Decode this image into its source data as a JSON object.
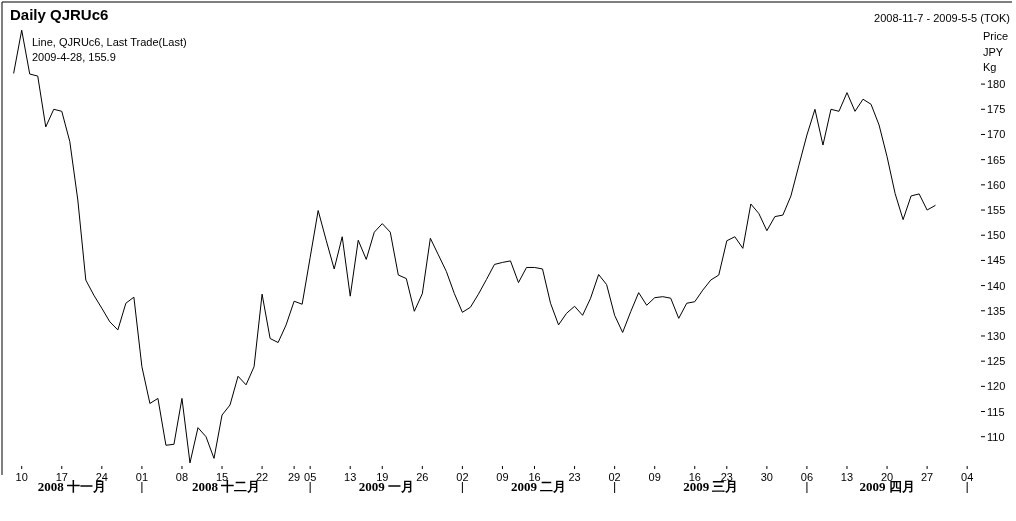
{
  "chart_data": {
    "type": "line",
    "title": "Daily QJRUc6",
    "subtitle": "2008-11-7 - 2009-5-5 (TOK)",
    "ylabel": "Price JPY Kg",
    "annotations": [
      "2009-4-28, 155.9",
      "2008 十一月",
      "2008 十二月",
      "2009 一月",
      "2009 二月",
      "2009 三月",
      "2009 四月"
    ],
    "categories": [
      null,
      "10",
      null,
      null,
      null,
      null,
      "17",
      null,
      null,
      null,
      null,
      "24",
      null,
      null,
      null,
      null,
      "01",
      null,
      null,
      null,
      null,
      "08",
      null,
      null,
      null,
      null,
      "15",
      null,
      null,
      null,
      null,
      "22",
      null,
      null,
      null,
      "29",
      null,
      "05",
      null,
      null,
      null,
      null,
      "13",
      null,
      null,
      null,
      "19",
      null,
      null,
      null,
      null,
      "26",
      null,
      null,
      null,
      null,
      "02",
      null,
      null,
      null,
      null,
      "09",
      null,
      null,
      null,
      "16",
      null,
      null,
      null,
      null,
      "23",
      null,
      null,
      null,
      null,
      "02",
      null,
      null,
      null,
      null,
      "09",
      null,
      null,
      null,
      null,
      "16",
      null,
      null,
      null,
      "23",
      null,
      null,
      null,
      null,
      "30",
      null,
      null,
      null,
      null,
      "06",
      null,
      null,
      null,
      null,
      "13",
      null,
      null,
      null,
      null,
      "20",
      null,
      null,
      null,
      null,
      "27",
      null,
      null,
      null,
      null,
      "04",
      null
    ],
    "series": [
      {
        "name": "Line, QJRUc6, Last Trade(Last)",
        "color": "#000000",
        "values": [
          182.2,
          190.7,
          182.0,
          181.6,
          171.5,
          175.0,
          174.6,
          168.6,
          157.0,
          141.1,
          138.1,
          135.5,
          132.8,
          131.2,
          136.5,
          137.7,
          123.9,
          116.6,
          117.6,
          108.3,
          108.5,
          117.6,
          104.8,
          111.8,
          110.0,
          105.7,
          114.3,
          116.3,
          122.0,
          120.3,
          123.9,
          138.3,
          129.5,
          128.7,
          132.2,
          136.9,
          136.3,
          145.6,
          154.9,
          149.0,
          143.3,
          149.7,
          137.9,
          149.0,
          145.2,
          150.6,
          152.3,
          150.6,
          142.1,
          141.4,
          134.9,
          138.4,
          149.4,
          146.1,
          142.8,
          138.4,
          134.7,
          135.7,
          138.3,
          141.2,
          144.2,
          144.6,
          144.9,
          140.6,
          143.6,
          143.6,
          143.3,
          136.5,
          132.2,
          134.5,
          135.9,
          134.1,
          137.5,
          142.2,
          140.2,
          134.1,
          130.7,
          134.8,
          138.6,
          136.1,
          137.6,
          137.8,
          137.5,
          133.5,
          136.5,
          136.8,
          139.1,
          141.1,
          142.1,
          148.9,
          149.7,
          147.4,
          156.2,
          154.3,
          150.9,
          153.7,
          154.0,
          157.8,
          163.9,
          169.9,
          175.0,
          167.9,
          175.0,
          174.6,
          178.3,
          174.6,
          177.0,
          176.0,
          171.9,
          165.6,
          158.3,
          153.1,
          157.8,
          158.2,
          155.0,
          155.9,
          null,
          null,
          null,
          null,
          null
        ]
      }
    ],
    "ylim": [
      102.4,
      196.3
    ],
    "yticks": [
      110,
      115,
      120,
      125,
      130,
      135,
      140,
      145,
      150,
      155,
      160,
      165,
      170,
      175,
      180
    ],
    "legend": "top left"
  }
}
